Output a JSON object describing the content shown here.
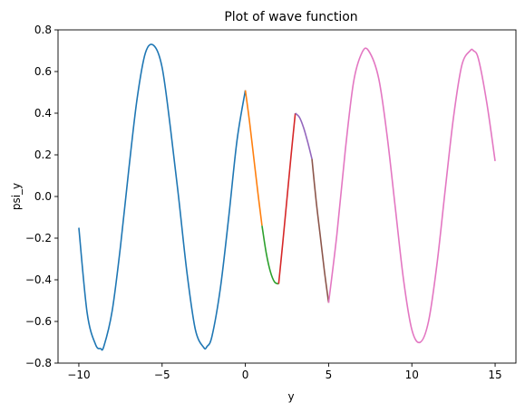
{
  "chart_data": {
    "type": "line",
    "title": "Plot of wave function",
    "xlabel": "y",
    "ylabel": "psi_y",
    "xlim": [
      -11.25,
      16.25
    ],
    "ylim": [
      -0.8,
      0.8
    ],
    "xticks": [
      -10,
      -5,
      0,
      5,
      10,
      15
    ],
    "yticks": [
      -0.8,
      -0.6,
      -0.4,
      -0.2,
      0.0,
      0.2,
      0.4,
      0.6,
      0.8
    ],
    "xtick_labels": [
      "−10",
      "−5",
      "0",
      "5",
      "10",
      "15"
    ],
    "ytick_labels": [
      "−0.8",
      "−0.6",
      "−0.4",
      "−0.2",
      "0.0",
      "0.2",
      "0.4",
      "0.6",
      "0.8"
    ],
    "grid": false,
    "series": [
      {
        "color": "#1f77b4",
        "x": [
          -10,
          -9.5,
          -9,
          -8.7,
          -8.5,
          -8,
          -7.5,
          -7,
          -6.5,
          -6,
          -5.5,
          -5,
          -4.5,
          -4,
          -3.5,
          -3,
          -2.5,
          -2.3,
          -2,
          -1.5,
          -1,
          -0.5,
          0
        ],
        "y": [
          -0.15,
          -0.56,
          -0.71,
          -0.73,
          -0.72,
          -0.55,
          -0.24,
          0.13,
          0.47,
          0.69,
          0.725,
          0.62,
          0.33,
          -0.01,
          -0.37,
          -0.64,
          -0.725,
          -0.72,
          -0.67,
          -0.44,
          -0.1,
          0.27,
          0.51
        ]
      },
      {
        "color": "#ff7f0e",
        "x": [
          0,
          0.25,
          0.5,
          0.75,
          1
        ],
        "y": [
          0.51,
          0.36,
          0.19,
          0.02,
          -0.14
        ]
      },
      {
        "color": "#2ca02c",
        "x": [
          1,
          1.25,
          1.5,
          1.75,
          2
        ],
        "y": [
          -0.14,
          -0.27,
          -0.36,
          -0.41,
          -0.42
        ]
      },
      {
        "color": "#d62728",
        "x": [
          2,
          2.25,
          2.5,
          2.75,
          3
        ],
        "y": [
          -0.42,
          -0.22,
          -0.01,
          0.2,
          0.4
        ]
      },
      {
        "color": "#9467bd",
        "x": [
          3,
          3.25,
          3.5,
          3.75,
          4
        ],
        "y": [
          0.4,
          0.38,
          0.33,
          0.26,
          0.18
        ]
      },
      {
        "color": "#8c564b",
        "x": [
          4,
          4.25,
          4.5,
          4.75,
          5
        ],
        "y": [
          0.18,
          -0.02,
          -0.19,
          -0.36,
          -0.51
        ]
      },
      {
        "color": "#e377c2",
        "x": [
          5,
          5.5,
          6,
          6.5,
          7,
          7.4,
          8,
          8.5,
          9,
          9.5,
          10,
          10.5,
          11,
          11.5,
          12,
          12.5,
          13,
          13.5,
          13.7,
          14,
          14.5,
          15
        ],
        "y": [
          -0.51,
          -0.18,
          0.22,
          0.55,
          0.69,
          0.7,
          0.57,
          0.3,
          -0.05,
          -0.4,
          -0.64,
          -0.7,
          -0.6,
          -0.33,
          0.03,
          0.38,
          0.63,
          0.7,
          0.7,
          0.66,
          0.45,
          0.17
        ]
      }
    ]
  }
}
